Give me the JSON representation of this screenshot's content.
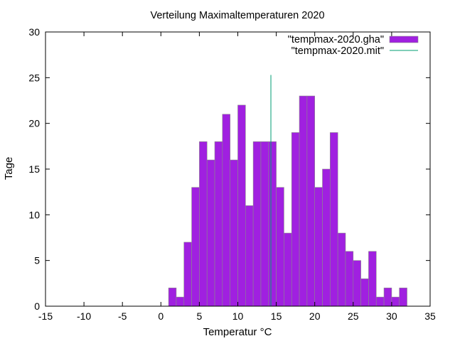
{
  "chart_data": {
    "type": "bar",
    "title": "Verteilung Maximaltemperaturen 2020",
    "xlabel": "Temperatur °C",
    "ylabel": "Tage",
    "xlim": [
      -15,
      35
    ],
    "ylim": [
      0,
      30
    ],
    "xticks": [
      "-15",
      "-10",
      "-5",
      "0",
      "5",
      "10",
      "15",
      "20",
      "25",
      "30",
      "35"
    ],
    "yticks": [
      "0",
      "5",
      "10",
      "15",
      "20",
      "25",
      "30"
    ],
    "legend_position": "top-right",
    "bin_width": 1,
    "series": [
      {
        "name": "\"tempmax-2020.gha\"",
        "color": "#a020e0",
        "style": "boxes",
        "x": [
          1.5,
          2.5,
          3.5,
          4.5,
          5.5,
          6.5,
          7.5,
          8.5,
          9.5,
          10.5,
          11.5,
          12.5,
          13.5,
          14.5,
          15.5,
          16.5,
          17.5,
          18.5,
          19.5,
          20.5,
          21.5,
          22.5,
          23.5,
          24.5,
          25.5,
          26.5,
          27.5,
          28.5,
          29.5,
          30.5,
          31.5
        ],
        "values": [
          2,
          1,
          7,
          13,
          18,
          16,
          18,
          21,
          16,
          22,
          11,
          18,
          18,
          18,
          13,
          8,
          19,
          23,
          23,
          13,
          15,
          19,
          8,
          6,
          5,
          3,
          6,
          1,
          2,
          1,
          2
        ]
      },
      {
        "name": "\"tempmax-2020.mit\"",
        "color": "#009e73",
        "style": "impulse",
        "x": [
          14.3
        ],
        "values": [
          25.3
        ]
      }
    ]
  }
}
